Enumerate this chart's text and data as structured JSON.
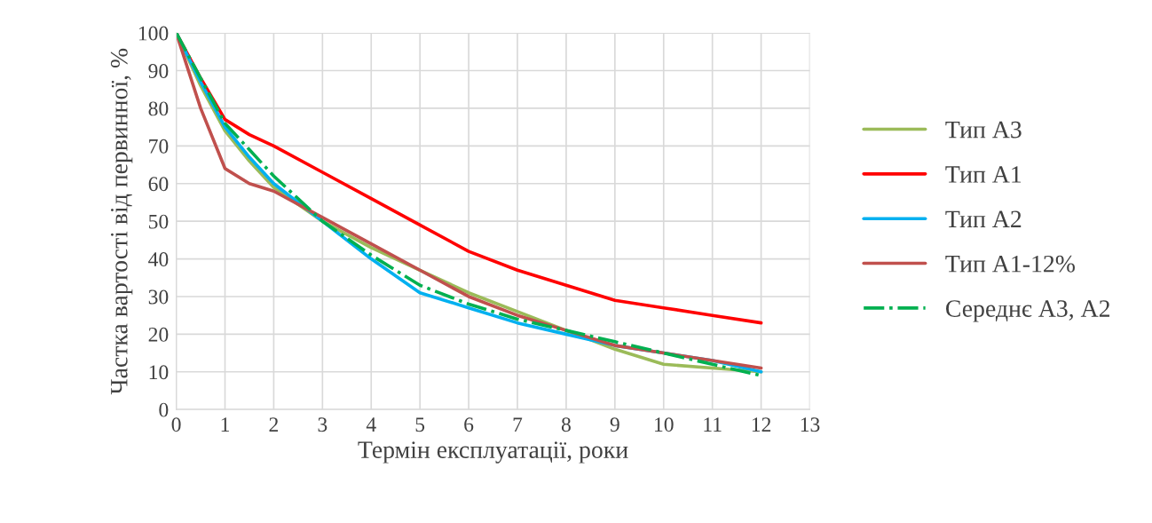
{
  "chart_data": {
    "type": "line",
    "xlabel": "Термін експлуатації, роки",
    "ylabel": "Частка вартості від первинної, %",
    "xlim": [
      0,
      13
    ],
    "xticks": [
      0,
      1,
      2,
      3,
      4,
      5,
      6,
      7,
      8,
      9,
      10,
      11,
      12,
      13
    ],
    "ylim": [
      0,
      100
    ],
    "yticks": [
      0,
      10,
      20,
      30,
      40,
      50,
      60,
      70,
      80,
      90,
      100
    ],
    "grid": true,
    "legend": "right",
    "marker": "none",
    "x": [
      0,
      0.5,
      1,
      1.5,
      2,
      3,
      4,
      5,
      6,
      7,
      8,
      9,
      10,
      11,
      12
    ],
    "series": [
      {
        "name": "Тип А3",
        "color": "#9bbb59",
        "values": [
          100,
          86,
          74,
          66,
          59,
          50,
          43,
          37,
          31,
          26,
          21,
          16,
          12,
          11,
          10
        ]
      },
      {
        "name": "Тип А1",
        "color": "#ff0000",
        "values": [
          100,
          88,
          77,
          73,
          70,
          63,
          56,
          49,
          42,
          37,
          33,
          29,
          27,
          25,
          23
        ]
      },
      {
        "name": "Тип А2",
        "color": "#00b0f0",
        "values": [
          100,
          87,
          75,
          67,
          60,
          50,
          40,
          31,
          27,
          23,
          20,
          17,
          15,
          13,
          10
        ]
      },
      {
        "name": "Тип А1-12%",
        "color": "#c0504d",
        "values": [
          100,
          80,
          64,
          60,
          58,
          51,
          44,
          37,
          30,
          25,
          21,
          17,
          15,
          13,
          11
        ]
      },
      {
        "name": "Середнє А3, А2",
        "color": "#00b050",
        "line_style": "dashdot",
        "values": [
          100,
          88,
          76,
          69,
          62,
          50,
          41,
          33,
          28,
          24,
          21,
          18,
          15,
          12,
          9
        ]
      }
    ]
  }
}
